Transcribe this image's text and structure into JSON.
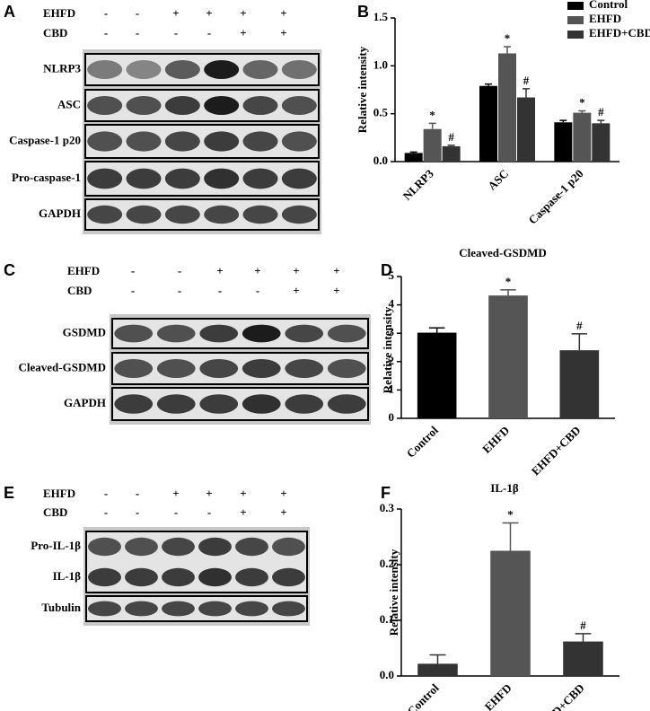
{
  "blots": [
    {
      "panel": "A",
      "treatments": [
        {
          "name": "EHFD",
          "signs": [
            "-",
            "-",
            "+",
            "+",
            "+",
            "+"
          ]
        },
        {
          "name": "CBD",
          "signs": [
            "-",
            "-",
            "-",
            "-",
            "+",
            "+"
          ]
        }
      ],
      "bands": [
        "NLRP3",
        "ASC",
        "Caspase-1 p20",
        "Pro-caspase-1",
        "GAPDH"
      ]
    },
    {
      "panel": "C",
      "treatments": [
        {
          "name": "EHFD",
          "signs": [
            "-",
            "-",
            "+",
            "+",
            "+",
            "+"
          ]
        },
        {
          "name": "CBD",
          "signs": [
            "-",
            "-",
            "-",
            "-",
            "+",
            "+"
          ]
        }
      ],
      "bands": [
        "GSDMD",
        "Cleaved-GSDMD",
        "GAPDH"
      ]
    },
    {
      "panel": "E",
      "treatments": [
        {
          "name": "EHFD",
          "signs": [
            "-",
            "-",
            "+",
            "+",
            "+",
            "+"
          ]
        },
        {
          "name": "CBD",
          "signs": [
            "-",
            "-",
            "-",
            "-",
            "+",
            "+"
          ]
        }
      ],
      "bands": [
        "Pro-IL-1β",
        "IL-1β",
        "Tubulin"
      ]
    }
  ],
  "chart_data": [
    {
      "type": "bar",
      "panel": "B",
      "y_label": "Relative intensity",
      "categories": [
        "NLRP3",
        "ASC",
        "Caspase-1 p20"
      ],
      "series": [
        {
          "name": "Control",
          "color": "#000000",
          "values": [
            0.09,
            0.79,
            0.41
          ],
          "errors": [
            0.01,
            0.02,
            0.02
          ],
          "annotations": [
            null,
            null,
            null
          ]
        },
        {
          "name": "EHFD",
          "color": "#555555",
          "values": [
            0.34,
            1.13,
            0.51
          ],
          "errors": [
            0.06,
            0.07,
            0.02
          ],
          "annotations": [
            "*",
            "*",
            "*"
          ]
        },
        {
          "name": "EHFD+CBD",
          "color": "#333333",
          "values": [
            0.16,
            0.67,
            0.4
          ],
          "errors": [
            0.01,
            0.09,
            0.03
          ],
          "annotations": [
            "#",
            "#",
            "#"
          ]
        }
      ],
      "ylim": [
        0,
        1.5
      ],
      "yticks": [
        {
          "value": 0,
          "label": "0.0"
        },
        0.5,
        {
          "value": 1,
          "label": "1.0"
        },
        1.5
      ],
      "legend": "top-right"
    },
    {
      "type": "bar",
      "panel": "D",
      "title": "Cleaved-GSDMD",
      "y_label": "Relative intensity",
      "categories": [
        "Control",
        "EHFD",
        "EHFD+CBD"
      ],
      "values": [
        3.02,
        4.33,
        2.4
      ],
      "errors": [
        0.17,
        0.2,
        0.58
      ],
      "colors": [
        "#000000",
        "#555555",
        "#333333"
      ],
      "annotations": [
        null,
        "*",
        "#"
      ],
      "ylim": [
        0,
        5
      ],
      "yticks": [
        0,
        1,
        2,
        3,
        4,
        5
      ]
    },
    {
      "type": "bar",
      "panel": "F",
      "title": "IL-1β",
      "y_label": "Relative intensity",
      "categories": [
        "Control",
        "EHFD",
        "EHFD+CBD"
      ],
      "values": [
        0.022,
        0.225,
        0.062
      ],
      "errors": [
        0.016,
        0.05,
        0.014
      ],
      "colors": [
        "#333333",
        "#555555",
        "#333333"
      ],
      "annotations": [
        null,
        "*",
        "#"
      ],
      "ylim": [
        0,
        0.3
      ],
      "yticks": [
        {
          "value": 0,
          "label": "0.0"
        },
        0.1,
        0.2,
        0.3
      ]
    }
  ]
}
